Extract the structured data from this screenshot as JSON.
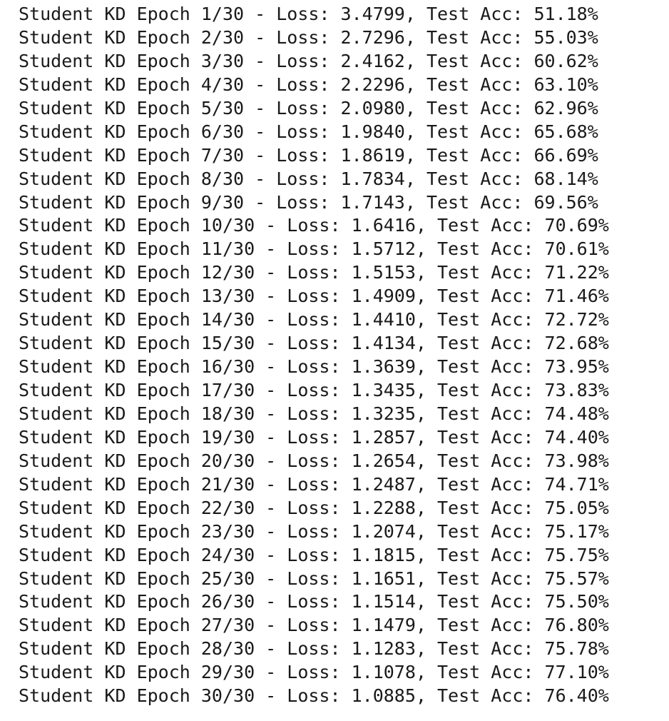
{
  "output": {
    "lines": [
      "Student KD Epoch 1/30 - Loss: 3.4799, Test Acc: 51.18%",
      "Student KD Epoch 2/30 - Loss: 2.7296, Test Acc: 55.03%",
      "Student KD Epoch 3/30 - Loss: 2.4162, Test Acc: 60.62%",
      "Student KD Epoch 4/30 - Loss: 2.2296, Test Acc: 63.10%",
      "Student KD Epoch 5/30 - Loss: 2.0980, Test Acc: 62.96%",
      "Student KD Epoch 6/30 - Loss: 1.9840, Test Acc: 65.68%",
      "Student KD Epoch 7/30 - Loss: 1.8619, Test Acc: 66.69%",
      "Student KD Epoch 8/30 - Loss: 1.7834, Test Acc: 68.14%",
      "Student KD Epoch 9/30 - Loss: 1.7143, Test Acc: 69.56%",
      "Student KD Epoch 10/30 - Loss: 1.6416, Test Acc: 70.69%",
      "Student KD Epoch 11/30 - Loss: 1.5712, Test Acc: 70.61%",
      "Student KD Epoch 12/30 - Loss: 1.5153, Test Acc: 71.22%",
      "Student KD Epoch 13/30 - Loss: 1.4909, Test Acc: 71.46%",
      "Student KD Epoch 14/30 - Loss: 1.4410, Test Acc: 72.72%",
      "Student KD Epoch 15/30 - Loss: 1.4134, Test Acc: 72.68%",
      "Student KD Epoch 16/30 - Loss: 1.3639, Test Acc: 73.95%",
      "Student KD Epoch 17/30 - Loss: 1.3435, Test Acc: 73.83%",
      "Student KD Epoch 18/30 - Loss: 1.3235, Test Acc: 74.48%",
      "Student KD Epoch 19/30 - Loss: 1.2857, Test Acc: 74.40%",
      "Student KD Epoch 20/30 - Loss: 1.2654, Test Acc: 73.98%",
      "Student KD Epoch 21/30 - Loss: 1.2487, Test Acc: 74.71%",
      "Student KD Epoch 22/30 - Loss: 1.2288, Test Acc: 75.05%",
      "Student KD Epoch 23/30 - Loss: 1.2074, Test Acc: 75.17%",
      "Student KD Epoch 24/30 - Loss: 1.1815, Test Acc: 75.75%",
      "Student KD Epoch 25/30 - Loss: 1.1651, Test Acc: 75.57%",
      "Student KD Epoch 26/30 - Loss: 1.1514, Test Acc: 75.50%",
      "Student KD Epoch 27/30 - Loss: 1.1479, Test Acc: 76.80%",
      "Student KD Epoch 28/30 - Loss: 1.1283, Test Acc: 75.78%",
      "Student KD Epoch 29/30 - Loss: 1.1078, Test Acc: 77.10%",
      "Student KD Epoch 30/30 - Loss: 1.0885, Test Acc: 76.40%"
    ]
  }
}
